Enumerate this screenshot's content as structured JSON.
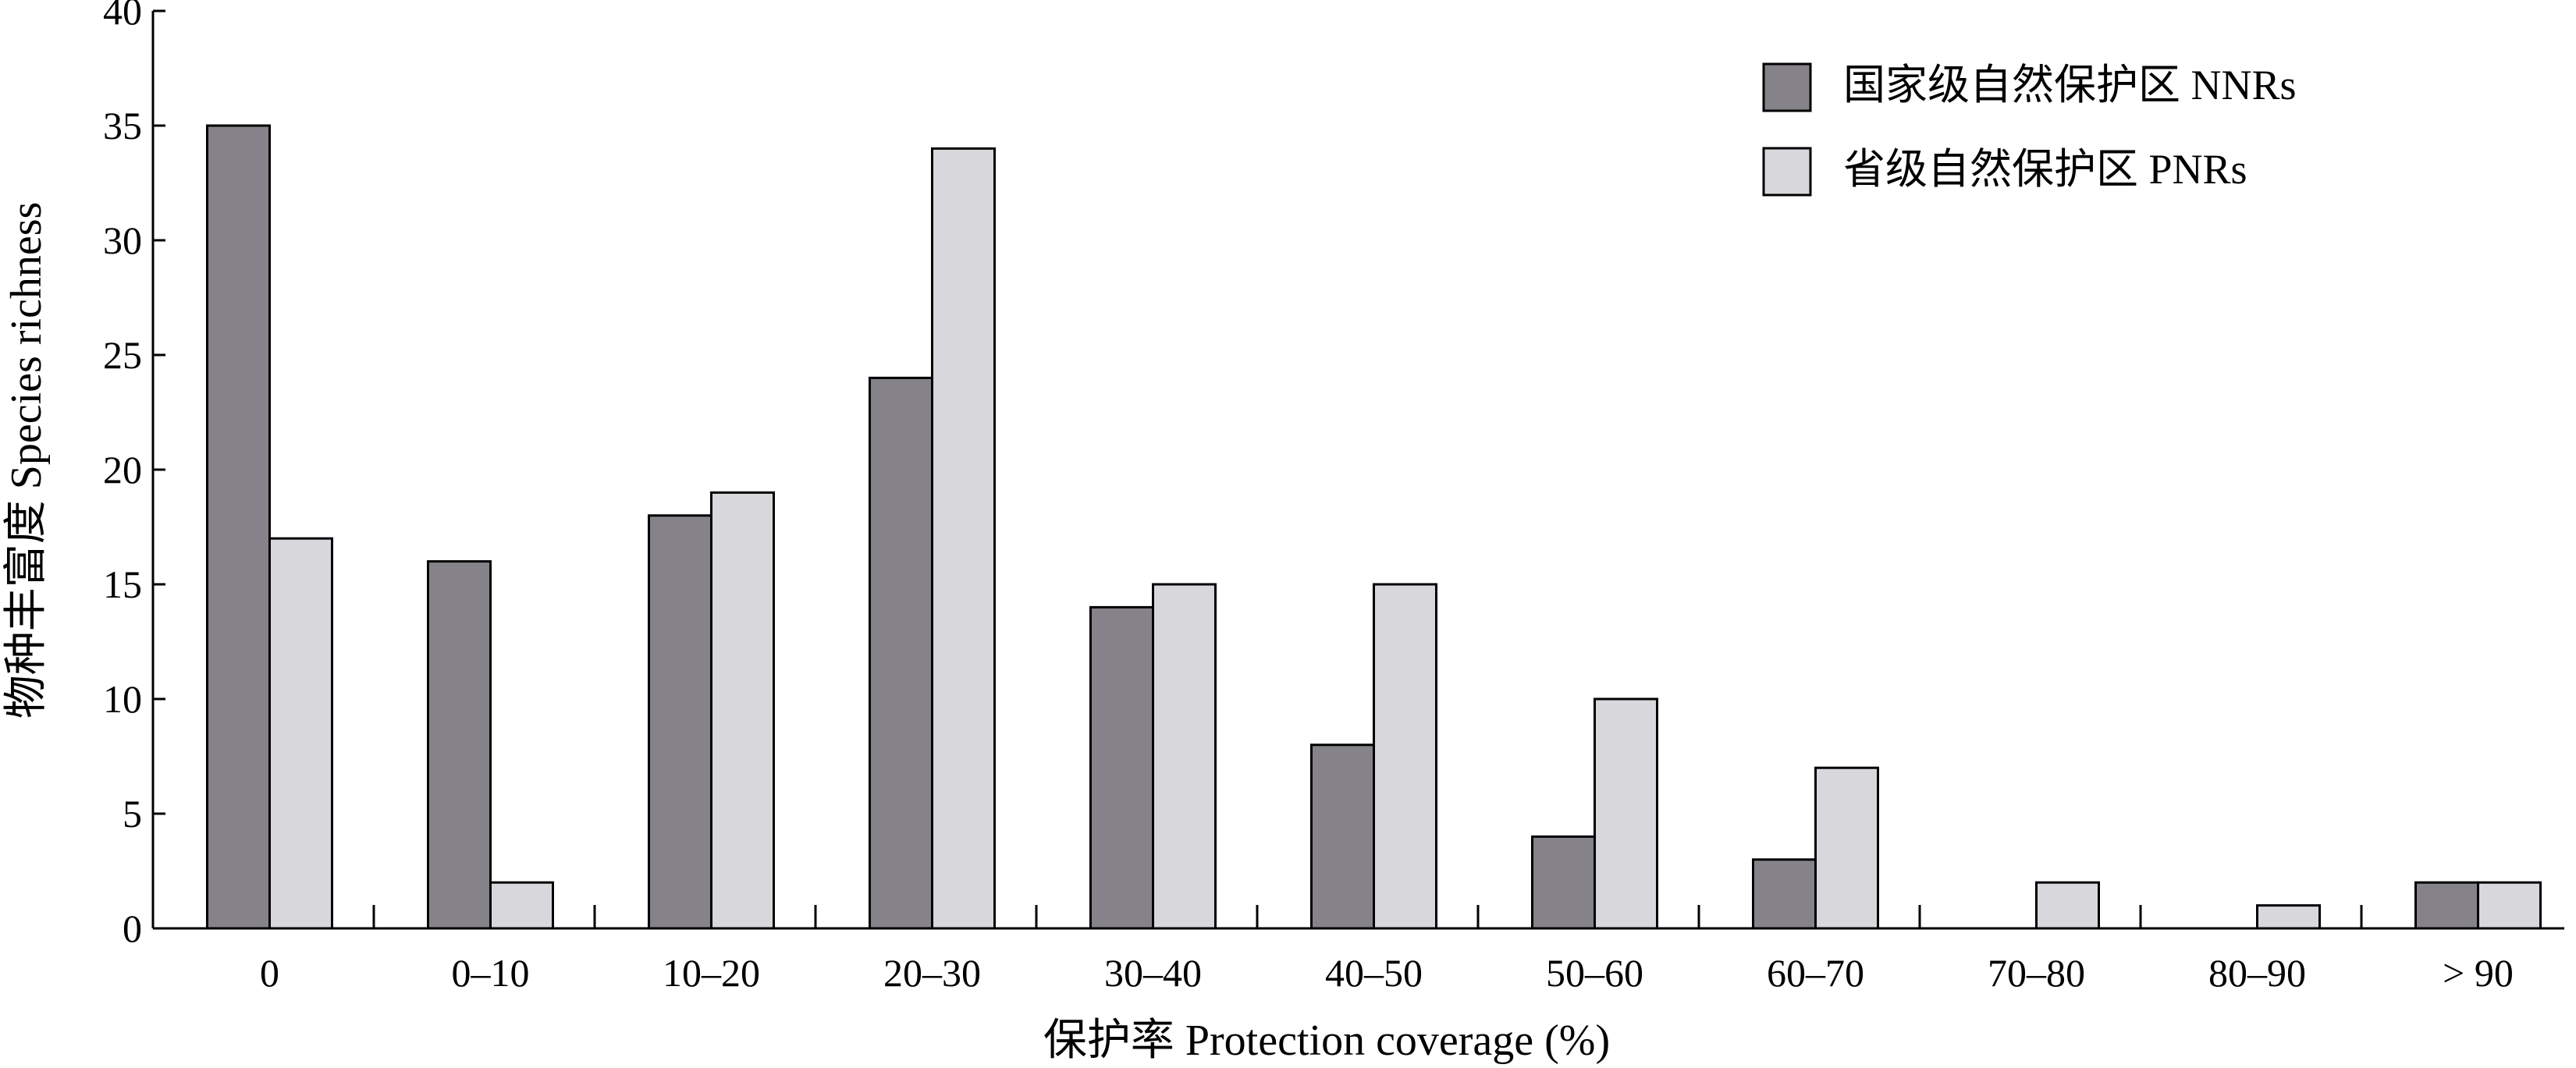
{
  "chart_data": {
    "type": "bar",
    "categories": [
      "0",
      "0–10",
      "10–20",
      "20–30",
      "30–40",
      "40–50",
      "50–60",
      "60–70",
      "70–80",
      "80–90",
      "> 90"
    ],
    "series": [
      {
        "name": "国家级自然保护区 NNRs",
        "values": [
          35,
          16,
          18,
          24,
          14,
          8,
          4,
          3,
          0,
          0,
          2
        ],
        "color": "#858389"
      },
      {
        "name": "省级自然保护区 PNRs",
        "values": [
          17,
          2,
          19,
          34,
          15,
          15,
          10,
          7,
          2,
          1,
          2
        ],
        "color": "#d8d7dc"
      }
    ],
    "xlabel": "保护率 Protection  coverage (%)",
    "ylabel": "物种丰富度 Species richness",
    "ylim": [
      0,
      40
    ],
    "yticks": [
      0,
      5,
      10,
      15,
      20,
      25,
      30,
      35,
      40
    ],
    "grid": false,
    "legend_position": "top-right"
  }
}
